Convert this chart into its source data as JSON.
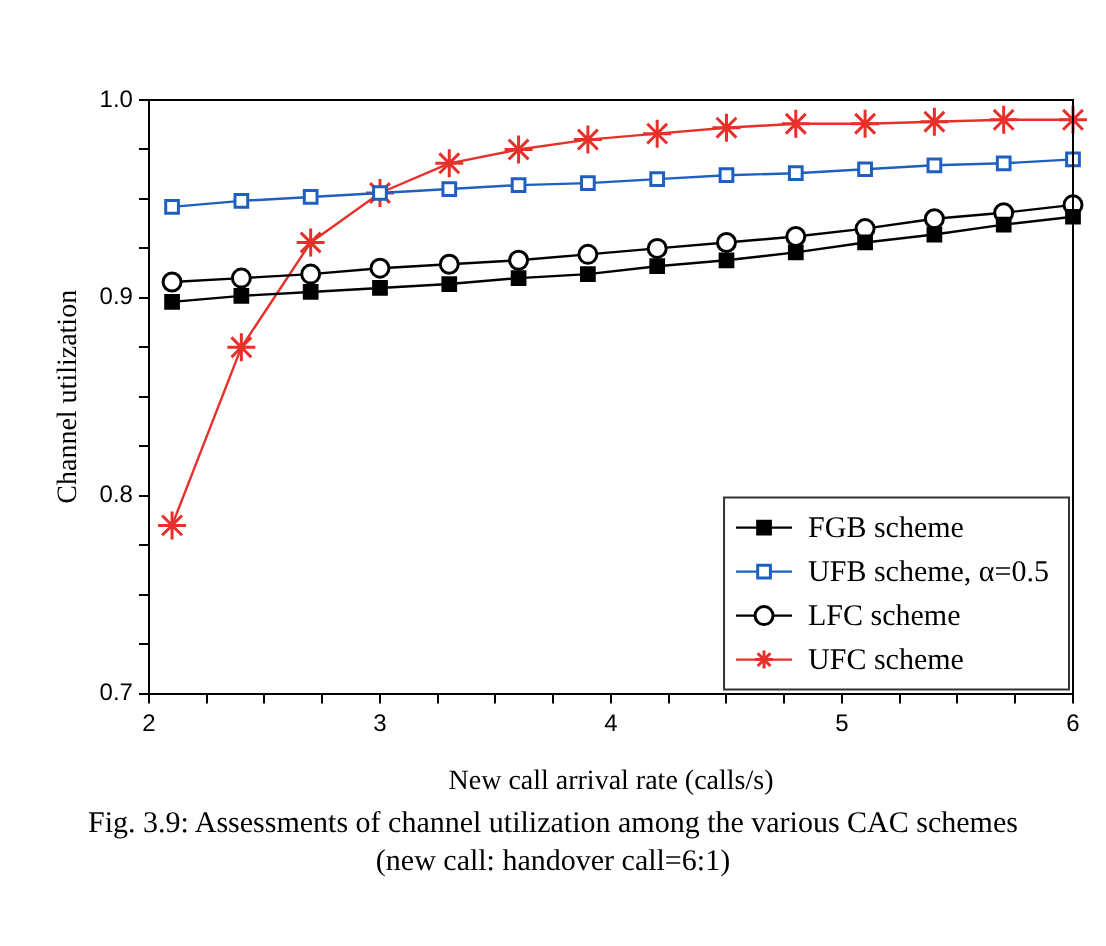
{
  "chart_data": {
    "type": "line",
    "xlabel": "New call arrival rate (calls/s)",
    "ylabel": "Channel utilization",
    "annotations": [
      "Fig. 3.9: Assessments of channel utilization among the various CAC schemes",
      "(new call: handover call=6:1)"
    ],
    "x": [
      2.1,
      2.4,
      2.7,
      3.0,
      3.3,
      3.6,
      3.9,
      4.2,
      4.5,
      4.8,
      5.1,
      5.4,
      5.7,
      6.0
    ],
    "series": [
      {
        "name": "FGB scheme",
        "color": "#000000",
        "marker": "square",
        "values": [
          0.898,
          0.901,
          0.903,
          0.905,
          0.907,
          0.91,
          0.912,
          0.916,
          0.919,
          0.923,
          0.928,
          0.932,
          0.937,
          0.941
        ]
      },
      {
        "name": "UFB scheme, α=0.5",
        "color": "#1f5fbf",
        "marker": "square",
        "values": [
          0.946,
          0.949,
          0.951,
          0.953,
          0.955,
          0.957,
          0.958,
          0.96,
          0.962,
          0.963,
          0.965,
          0.967,
          0.968,
          0.97
        ]
      },
      {
        "name": "LFC scheme",
        "color": "#000000",
        "marker": "circle",
        "values": [
          0.908,
          0.91,
          0.912,
          0.915,
          0.917,
          0.919,
          0.922,
          0.925,
          0.928,
          0.931,
          0.935,
          0.94,
          0.943,
          0.947
        ]
      },
      {
        "name": "UFC scheme",
        "color": "#e8302a",
        "marker": "cross",
        "values": [
          0.785,
          0.875,
          0.928,
          0.953,
          0.968,
          0.975,
          0.98,
          0.983,
          0.986,
          0.988,
          0.988,
          0.989,
          0.99,
          0.99
        ]
      }
    ],
    "xlim": [
      2,
      6
    ],
    "xticks": [
      2,
      {
        "value": 2.25,
        "label": null
      },
      {
        "value": 2.5,
        "label": null
      },
      {
        "value": 2.75,
        "label": null
      },
      3,
      {
        "value": 3.25,
        "label": null
      },
      {
        "value": 3.5,
        "label": null
      },
      {
        "value": 3.75,
        "label": null
      },
      4,
      {
        "value": 4.25,
        "label": null
      },
      {
        "value": 4.5,
        "label": null
      },
      {
        "value": 4.75,
        "label": null
      },
      5,
      {
        "value": 5.25,
        "label": null
      },
      {
        "value": 5.5,
        "label": null
      },
      {
        "value": 5.75,
        "label": null
      },
      6
    ],
    "ylim": [
      0.7,
      1.0
    ],
    "yticks": [
      {
        "value": 0.7,
        "label": "0.7"
      },
      {
        "value": 0.725,
        "label": null
      },
      {
        "value": 0.75,
        "label": null
      },
      {
        "value": 0.775,
        "label": null
      },
      {
        "value": 0.8,
        "label": "0.8"
      },
      {
        "value": 0.825,
        "label": null
      },
      {
        "value": 0.85,
        "label": null
      },
      {
        "value": 0.875,
        "label": null
      },
      {
        "value": 0.9,
        "label": "0.9"
      },
      {
        "value": 0.925,
        "label": null
      },
      {
        "value": 0.95,
        "label": null
      },
      {
        "value": 0.975,
        "label": null
      },
      {
        "value": 1.0,
        "label": "1.0"
      }
    ],
    "grid": false,
    "legend": "bottom right"
  }
}
